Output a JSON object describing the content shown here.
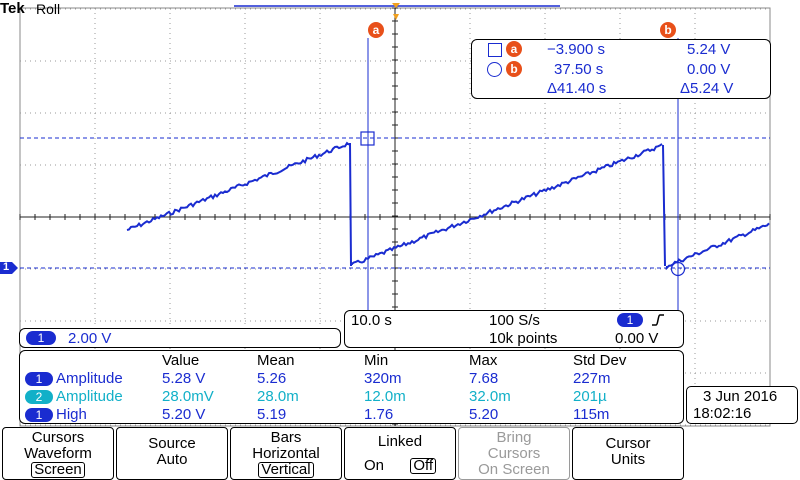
{
  "header": {
    "brand": "Tek",
    "mode": "Roll"
  },
  "cursor_labels": {
    "a": "a",
    "b": "b"
  },
  "cursor_readout": {
    "row_a": {
      "time": "−3.900 s",
      "volt": "5.24 V"
    },
    "row_b": {
      "time": "37.50 s",
      "volt": "0.00 V"
    },
    "delta": {
      "time": "Δ41.40 s",
      "volt": "Δ5.24 V"
    }
  },
  "channel": {
    "number": "1",
    "scale": "2.00 V"
  },
  "timebase": {
    "scale": "10.0 s",
    "rate": "100 S/s",
    "points": "10k points",
    "trigger_channel": "1",
    "trigger_level": "0.00 V"
  },
  "measurements": {
    "headers": [
      "Value",
      "Mean",
      "Min",
      "Max",
      "Std Dev"
    ],
    "rows": [
      {
        "ch": "1",
        "name": "Amplitude",
        "value": "5.28 V",
        "mean": "5.26",
        "min": "320m",
        "max": "7.68",
        "std": "227m",
        "color": "#1a2cd0"
      },
      {
        "ch": "2",
        "name": "Amplitude",
        "value": "28.0mV",
        "mean": "28.0m",
        "min": "12.0m",
        "max": "32.0m",
        "std": "201µ",
        "color": "#12b0c8"
      },
      {
        "ch": "1",
        "name": "High",
        "value": "5.20 V",
        "mean": "5.19",
        "min": "1.76",
        "max": "5.20",
        "std": "115m",
        "color": "#1a2cd0"
      }
    ]
  },
  "datetime": {
    "date": "3 Jun 2016",
    "time": "18:02:16"
  },
  "menu": [
    {
      "l1": "Cursors",
      "l2": "Waveform",
      "l3": "Screen"
    },
    {
      "l1": "Source",
      "l2": "Auto"
    },
    {
      "l1": "Bars",
      "l2": "Horizontal",
      "l3": "Vertical"
    },
    {
      "l1": "Linked",
      "on": "On",
      "off": "Off"
    },
    {
      "l1": "Bring",
      "l2": "Cursors",
      "l3": "On Screen"
    },
    {
      "l1": "Cursor",
      "l2": "Units"
    }
  ],
  "colors": {
    "ch1": "#1a2cd0",
    "ch2": "#12b0c8",
    "cursor_badge": "#e8501a",
    "trigger": "#f0a020"
  }
}
